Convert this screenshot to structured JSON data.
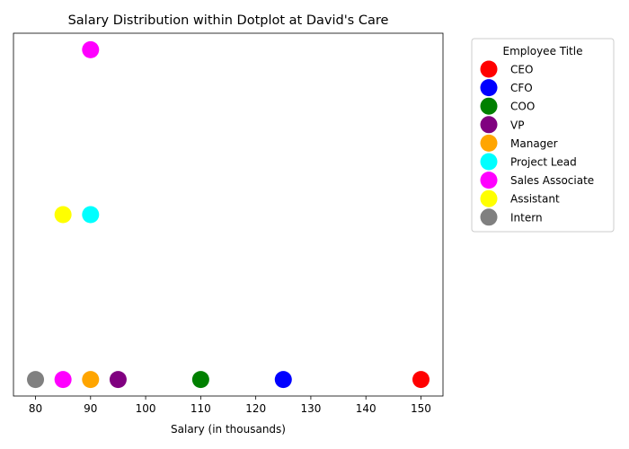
{
  "chart_data": {
    "type": "scatter",
    "title": "Salary Distribution within Dotplot at David's Care",
    "xlabel": "Salary (in thousands)",
    "ylabel": "",
    "xlim": [
      76,
      154
    ],
    "ylim": [
      -0.1,
      2.1
    ],
    "x_ticks": [
      80,
      90,
      100,
      110,
      120,
      130,
      140,
      150
    ],
    "y_ticks_shown": false,
    "grid": false,
    "legend": {
      "title": "Employee Title",
      "placement": "outside-right-top"
    },
    "series": [
      {
        "name": "CEO",
        "color": "#ff0000",
        "points": [
          {
            "x": 150,
            "y": 0
          }
        ]
      },
      {
        "name": "CFO",
        "color": "#0000ff",
        "points": [
          {
            "x": 125,
            "y": 0
          }
        ]
      },
      {
        "name": "COO",
        "color": "#008000",
        "points": [
          {
            "x": 110,
            "y": 0
          }
        ]
      },
      {
        "name": "VP",
        "color": "#800080",
        "points": [
          {
            "x": 95,
            "y": 0
          }
        ]
      },
      {
        "name": "Manager",
        "color": "#ffa500",
        "points": [
          {
            "x": 90,
            "y": 0
          }
        ]
      },
      {
        "name": "Project Lead",
        "color": "#00ffff",
        "points": [
          {
            "x": 90,
            "y": 1
          }
        ]
      },
      {
        "name": "Sales Associate",
        "color": "#ff00ff",
        "points": [
          {
            "x": 85,
            "y": 0
          },
          {
            "x": 90,
            "y": 2
          }
        ]
      },
      {
        "name": "Assistant",
        "color": "#ffff00",
        "points": [
          {
            "x": 85,
            "y": 1
          }
        ]
      },
      {
        "name": "Intern",
        "color": "#808080",
        "points": [
          {
            "x": 80,
            "y": 0
          }
        ]
      }
    ]
  }
}
